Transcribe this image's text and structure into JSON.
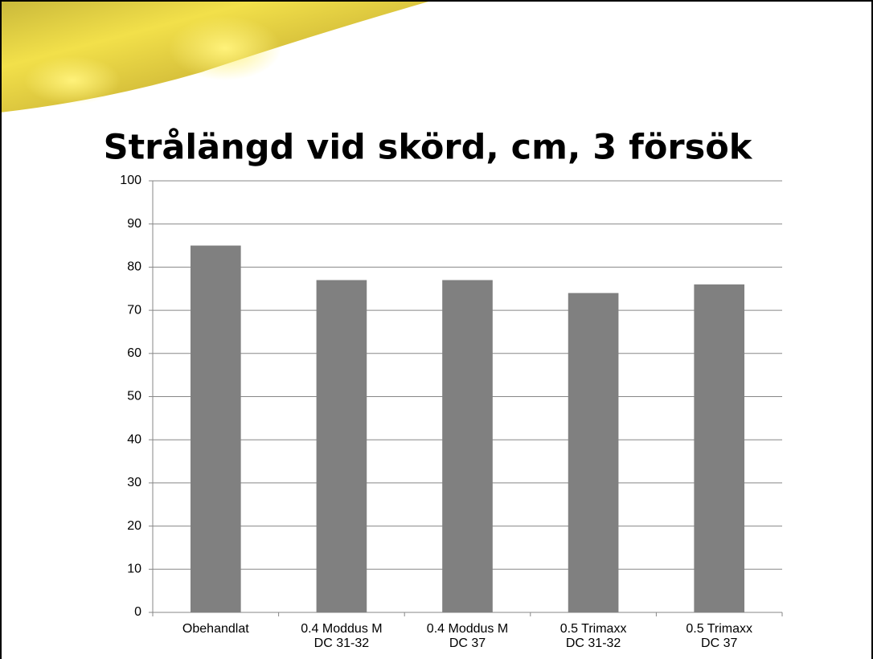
{
  "chart_data": {
    "type": "bar",
    "title": "Strålängd vid skörd, cm, 3 försök",
    "categories": [
      "Obehandlat",
      "0.4 Moddus M\nDC 31-32",
      "0.4 Moddus M\nDC 37",
      "0.5 Trimaxx\nDC 31-32",
      "0.5 Trimaxx\nDC 37"
    ],
    "values": [
      85,
      77,
      77,
      74,
      76
    ],
    "color": "#808080",
    "ylim": [
      0,
      100
    ],
    "yticks": [
      0,
      10,
      20,
      30,
      40,
      50,
      60,
      70,
      80,
      90,
      100
    ],
    "grid": true
  }
}
